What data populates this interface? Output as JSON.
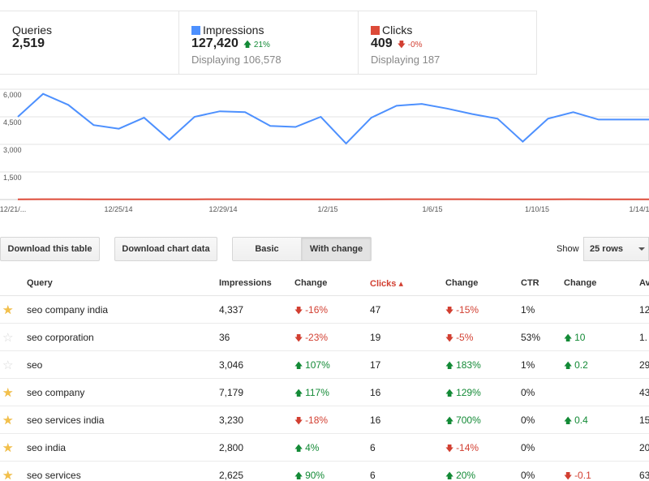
{
  "summary": {
    "queries": {
      "label": "Queries",
      "value": "2,519"
    },
    "impressions": {
      "label": "Impressions",
      "value": "127,420",
      "delta": "21%",
      "delta_dir": "up",
      "sub": "Displaying 106,578",
      "color": "#4d90fe"
    },
    "clicks": {
      "label": "Clicks",
      "value": "409",
      "delta": "-0%",
      "delta_dir": "down",
      "sub": "Displaying 187",
      "color": "#dd4b39"
    }
  },
  "chart_data": {
    "type": "line",
    "y_ticks": [
      "6,000",
      "4,500",
      "3,000",
      "1,500"
    ],
    "ylim": [
      0,
      6000
    ],
    "x_ticks": [
      "12/21/...",
      "12/25/14",
      "12/29/14",
      "1/2/15",
      "1/6/15",
      "1/10/15",
      "1/14/1"
    ],
    "grid": true,
    "series": [
      {
        "name": "Impressions",
        "color": "#4d90fe",
        "values": [
          4500,
          5750,
          5150,
          4050,
          3850,
          4450,
          3250,
          4500,
          4800,
          4750,
          4000,
          3950,
          4500,
          3050,
          4450,
          5100,
          5200,
          4950,
          4650,
          4400,
          3150,
          4400,
          4750,
          4350,
          4350,
          4350
        ]
      },
      {
        "name": "Clicks",
        "color": "#dd4b39",
        "values": [
          15,
          18,
          16,
          14,
          13,
          15,
          12,
          15,
          16,
          16,
          14,
          14,
          15,
          11,
          15,
          17,
          17,
          16,
          16,
          15,
          11,
          15,
          16,
          15,
          15,
          15
        ]
      }
    ]
  },
  "toolbar": {
    "download_table": "Download this table",
    "download_chart": "Download chart data",
    "basic": "Basic",
    "with_change": "With change",
    "show_label": "Show",
    "rows_value": "25 rows"
  },
  "table": {
    "headers": {
      "query": "Query",
      "impressions": "Impressions",
      "change1": "Change",
      "clicks": "Clicks ▴",
      "change2": "Change",
      "ctr": "CTR",
      "change3": "Change",
      "avg": "Av"
    },
    "rows": [
      {
        "starred": true,
        "query": "seo company india",
        "impressions": "4,337",
        "imp_change": "-16%",
        "imp_dir": "down",
        "clicks": "47",
        "clk_change": "-15%",
        "clk_dir": "down",
        "ctr": "1%",
        "ctr_change": "",
        "ctr_dir": "",
        "avg": "12"
      },
      {
        "starred": false,
        "query": "seo corporation",
        "impressions": "36",
        "imp_change": "-23%",
        "imp_dir": "down",
        "clicks": "19",
        "clk_change": "-5%",
        "clk_dir": "down",
        "ctr": "53%",
        "ctr_change": "10",
        "ctr_dir": "up",
        "avg": "1."
      },
      {
        "starred": false,
        "query": "seo",
        "impressions": "3,046",
        "imp_change": "107%",
        "imp_dir": "up",
        "clicks": "17",
        "clk_change": "183%",
        "clk_dir": "up",
        "ctr": "1%",
        "ctr_change": "0.2",
        "ctr_dir": "up",
        "avg": "29"
      },
      {
        "starred": true,
        "query": "seo company",
        "impressions": "7,179",
        "imp_change": "117%",
        "imp_dir": "up",
        "clicks": "16",
        "clk_change": "129%",
        "clk_dir": "up",
        "ctr": "0%",
        "ctr_change": "",
        "ctr_dir": "",
        "avg": "43"
      },
      {
        "starred": true,
        "query": "seo services india",
        "impressions": "3,230",
        "imp_change": "-18%",
        "imp_dir": "down",
        "clicks": "16",
        "clk_change": "700%",
        "clk_dir": "up",
        "ctr": "0%",
        "ctr_change": "0.4",
        "ctr_dir": "up",
        "avg": "15"
      },
      {
        "starred": true,
        "query": "seo india",
        "impressions": "2,800",
        "imp_change": "4%",
        "imp_dir": "up",
        "clicks": "6",
        "clk_change": "-14%",
        "clk_dir": "down",
        "ctr": "0%",
        "ctr_change": "",
        "ctr_dir": "",
        "avg": "20"
      },
      {
        "starred": true,
        "query": "seo services",
        "impressions": "2,625",
        "imp_change": "90%",
        "imp_dir": "up",
        "clicks": "6",
        "clk_change": "20%",
        "clk_dir": "up",
        "ctr": "0%",
        "ctr_change": "-0.1",
        "ctr_dir": "down",
        "avg": "63"
      }
    ]
  }
}
